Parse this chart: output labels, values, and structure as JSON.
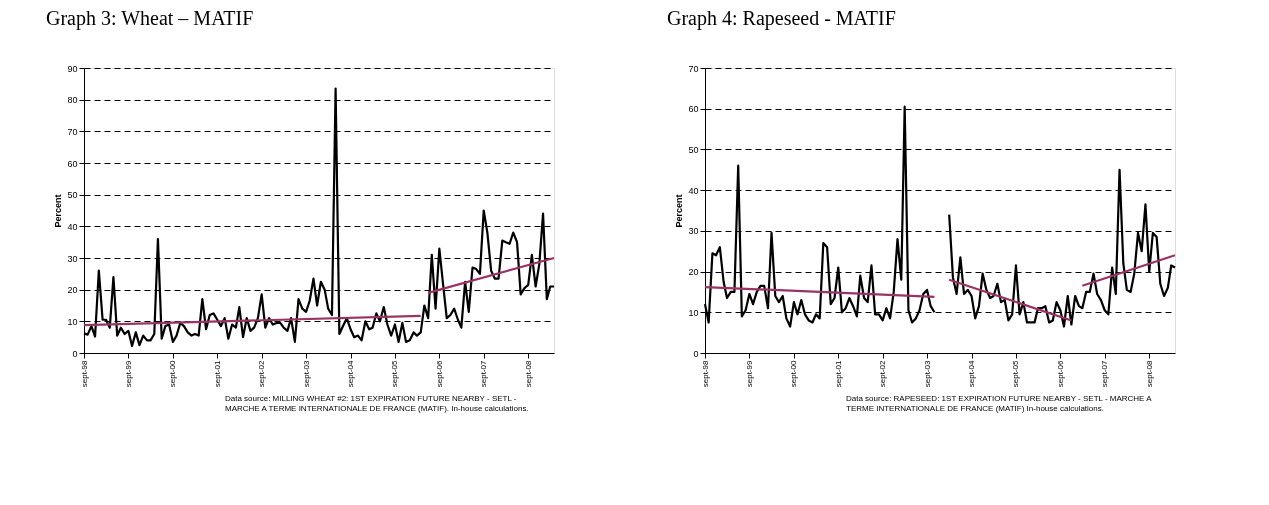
{
  "chart_data": [
    {
      "type": "line",
      "title": "Graph 3: Wheat – MATIF",
      "ylabel": "Percent",
      "annotations": [
        "Data source: MILLING WHEAT #2: 1ST EXPIRATION FUTURE NEARBY - SETL - MARCHE A TERME INTERNATIONALE DE FRANCE (MATIF). In-house calculations."
      ],
      "x": [
        "1998-09",
        "1998-10",
        "1998-11",
        "1998-12",
        "1999-01",
        "1999-02",
        "1999-03",
        "1999-04",
        "1999-05",
        "1999-06",
        "1999-07",
        "1999-08",
        "1999-09",
        "1999-10",
        "1999-11",
        "1999-12",
        "2000-01",
        "2000-02",
        "2000-03",
        "2000-04",
        "2000-05",
        "2000-06",
        "2000-07",
        "2000-08",
        "2000-09",
        "2000-10",
        "2000-11",
        "2000-12",
        "2001-01",
        "2001-02",
        "2001-03",
        "2001-04",
        "2001-05",
        "2001-06",
        "2001-07",
        "2001-08",
        "2001-09",
        "2001-10",
        "2001-11",
        "2001-12",
        "2002-01",
        "2002-02",
        "2002-03",
        "2002-04",
        "2002-05",
        "2002-06",
        "2002-07",
        "2002-08",
        "2002-09",
        "2002-10",
        "2002-11",
        "2002-12",
        "2003-01",
        "2003-02",
        "2003-03",
        "2003-04",
        "2003-05",
        "2003-06",
        "2003-07",
        "2003-08",
        "2003-09",
        "2003-10",
        "2003-11",
        "2003-12",
        "2004-01",
        "2004-02",
        "2004-03",
        "2004-04",
        "2004-05",
        "2004-06",
        "2004-07",
        "2004-08",
        "2004-09",
        "2004-10",
        "2004-11",
        "2004-12",
        "2005-01",
        "2005-02",
        "2005-03",
        "2005-04",
        "2005-05",
        "2005-06",
        "2005-07",
        "2005-08",
        "2005-09",
        "2005-10",
        "2005-11",
        "2005-12",
        "2006-01",
        "2006-02",
        "2006-03",
        "2006-04",
        "2006-05",
        "2006-06",
        "2006-07",
        "2006-08",
        "2006-09",
        "2006-10",
        "2006-11",
        "2006-12",
        "2007-01",
        "2007-02",
        "2007-03",
        "2007-04",
        "2007-05",
        "2007-06",
        "2007-07",
        "2007-08",
        "2007-09",
        "2007-10",
        "2007-11",
        "2007-12",
        "2008-01",
        "2008-02",
        "2008-03",
        "2008-04",
        "2008-05",
        "2008-06",
        "2008-07",
        "2008-08",
        "2008-09",
        "2008-10",
        "2008-11",
        "2008-12",
        "2009-01",
        "2009-02",
        "2009-03",
        "2009-04"
      ],
      "series": [
        {
          "color": "#000000",
          "values": [
            6.2,
            5.8,
            8.5,
            5.2,
            26,
            10.5,
            10.5,
            8,
            24,
            5.5,
            8,
            6,
            7,
            2.2,
            6.5,
            2.5,
            5.5,
            4,
            4,
            6,
            36,
            4.5,
            8.5,
            9,
            3.5,
            5.5,
            9.5,
            8.5,
            6.5,
            5.5,
            6,
            5.5,
            17,
            7.5,
            12,
            12.5,
            10.5,
            8.5,
            11,
            4.5,
            9,
            8,
            14.5,
            5,
            11,
            7,
            8,
            11,
            18.5,
            8,
            11,
            9,
            9.5,
            9.5,
            8,
            7,
            11,
            3.5,
            17,
            14,
            13,
            16.5,
            23.5,
            15,
            22.5,
            20,
            14,
            12,
            83.5,
            6,
            8.5,
            11,
            7.5,
            5,
            5.5,
            4,
            10,
            7.5,
            8,
            12.5,
            10,
            14.5,
            9,
            5.5,
            9,
            3.5,
            9.5,
            3.5,
            4,
            6.5,
            5.5,
            6.5,
            15,
            11,
            31,
            14,
            33,
            22,
            11,
            12,
            14,
            10.5,
            8,
            22.5,
            13,
            27,
            26.5,
            25,
            45,
            38,
            26,
            23.5,
            23.5,
            35.5,
            35,
            34.5,
            38,
            35,
            18.5,
            20.5,
            21.5,
            31,
            21,
            28,
            44,
            17,
            21,
            21
          ]
        },
        {
          "color": "#993366",
          "x": [
            "1998-09",
            "2006-04"
          ],
          "values": [
            8.8,
            11.7
          ]
        },
        {
          "color": "#993366",
          "x": [
            "2006-06",
            "2009-04"
          ],
          "values": [
            19,
            30
          ]
        }
      ],
      "xlim": [
        "1998-09",
        "2009-04"
      ],
      "xticks": [
        {
          "value": "1998-09",
          "label": "sept-98"
        },
        {
          "value": "1999-09",
          "label": "sept-99"
        },
        {
          "value": "2000-09",
          "label": "sept-00"
        },
        {
          "value": "2001-09",
          "label": "sept-01"
        },
        {
          "value": "2002-09",
          "label": "sept-02"
        },
        {
          "value": "2003-09",
          "label": "sept-03"
        },
        {
          "value": "2004-09",
          "label": "sept-04"
        },
        {
          "value": "2005-09",
          "label": "sept-05"
        },
        {
          "value": "2006-09",
          "label": "sept-06"
        },
        {
          "value": "2007-09",
          "label": "sept-07"
        },
        {
          "value": "2008-09",
          "label": "sept-08"
        }
      ],
      "ylim": [
        0,
        90
      ],
      "yticks": [
        0,
        10,
        20,
        30,
        40,
        50,
        60,
        70,
        80,
        90
      ],
      "grid": "y",
      "line_style": "solid"
    },
    {
      "type": "line",
      "title": "Graph 4: Rapeseed - MATIF",
      "ylabel": "Percent",
      "annotations": [
        "Data source: RAPESEED: 1ST EXPIRATION FUTURE NEARBY - SETL - MARCHE A TERME INTERNATIONALE DE FRANCE (MATIF) In-house calculations."
      ],
      "x": [
        "1998-09",
        "1998-10",
        "1998-11",
        "1998-12",
        "1999-01",
        "1999-02",
        "1999-03",
        "1999-04",
        "1999-05",
        "1999-06",
        "1999-07",
        "1999-08",
        "1999-09",
        "1999-10",
        "1999-11",
        "1999-12",
        "2000-01",
        "2000-02",
        "2000-03",
        "2000-04",
        "2000-05",
        "2000-06",
        "2000-07",
        "2000-08",
        "2000-09",
        "2000-10",
        "2000-11",
        "2000-12",
        "2001-01",
        "2001-02",
        "2001-03",
        "2001-04",
        "2001-05",
        "2001-06",
        "2001-07",
        "2001-08",
        "2001-09",
        "2001-10",
        "2001-11",
        "2001-12",
        "2002-01",
        "2002-02",
        "2002-03",
        "2002-04",
        "2002-05",
        "2002-06",
        "2002-07",
        "2002-08",
        "2002-09",
        "2002-10",
        "2002-11",
        "2002-12",
        "2003-01",
        "2003-02",
        "2003-03",
        "2003-04",
        "2003-05",
        "2003-06",
        "2003-07",
        "2003-08",
        "2003-09",
        "2003-10",
        "2003-11",
        "2003-12",
        "2004-01",
        "2004-02",
        "2004-03",
        "2004-04",
        "2004-05",
        "2004-06",
        "2004-07",
        "2004-08",
        "2004-09",
        "2004-10",
        "2004-11",
        "2004-12",
        "2005-01",
        "2005-02",
        "2005-03",
        "2005-04",
        "2005-05",
        "2005-06",
        "2005-07",
        "2005-08",
        "2005-09",
        "2005-10",
        "2005-11",
        "2005-12",
        "2006-01",
        "2006-02",
        "2006-03",
        "2006-04",
        "2006-05",
        "2006-06",
        "2006-07",
        "2006-08",
        "2006-09",
        "2006-10",
        "2006-11",
        "2006-12",
        "2007-01",
        "2007-02",
        "2007-03",
        "2007-04",
        "2007-05",
        "2007-06",
        "2007-07",
        "2007-08",
        "2007-09",
        "2007-10",
        "2007-11",
        "2007-12",
        "2008-01",
        "2008-02",
        "2008-03",
        "2008-04",
        "2008-05",
        "2008-06",
        "2008-07",
        "2008-08",
        "2008-09",
        "2008-10",
        "2008-11",
        "2008-12",
        "2009-01",
        "2009-02",
        "2009-03",
        "2009-04"
      ],
      "series": [
        {
          "color": "#000000",
          "values": [
            12,
            7.5,
            24.5,
            24,
            26,
            17.5,
            13.5,
            15,
            15,
            46,
            9,
            10.5,
            14.5,
            12,
            15,
            16.5,
            16.5,
            11,
            29.5,
            14,
            12.5,
            14,
            8.5,
            6.5,
            12.5,
            9.5,
            13,
            9.5,
            8,
            7.5,
            9.5,
            8.5,
            27,
            26,
            12,
            13.5,
            21,
            10,
            11,
            13.5,
            11.5,
            9,
            19,
            13.5,
            12.5,
            21.5,
            9.5,
            9.5,
            8,
            11,
            8.5,
            15,
            28,
            18,
            60.5,
            10.5,
            7.5,
            8.5,
            10.5,
            14.5,
            15.5,
            11.5,
            10,
            null,
            null,
            null,
            34,
            18.5,
            14.5,
            23.5,
            14.5,
            15.5,
            14,
            8.5,
            11.5,
            19.5,
            15.5,
            13.5,
            14,
            17,
            12.5,
            13,
            8,
            9.5,
            21.5,
            9.5,
            12.5,
            7.5,
            7.5,
            7.5,
            11,
            11,
            11.5,
            7.5,
            8,
            12.5,
            10.5,
            6.5,
            14,
            7,
            14,
            11.5,
            11,
            15,
            15,
            19.5,
            14.5,
            13,
            10.5,
            9.5,
            21,
            14.5,
            45,
            22,
            15.5,
            15,
            19.5,
            29.5,
            25,
            36.5,
            20,
            29.5,
            28.5,
            17,
            14,
            16,
            21.5,
            21
          ]
        },
        {
          "color": "#993366",
          "x": [
            "1998-09",
            "2003-11"
          ],
          "values": [
            16.2,
            13.8
          ]
        },
        {
          "color": "#993366",
          "x": [
            "2004-03",
            "2006-12"
          ],
          "values": [
            18,
            8
          ]
        },
        {
          "color": "#993366",
          "x": [
            "2007-03",
            "2009-04"
          ],
          "values": [
            16.5,
            24
          ]
        }
      ],
      "xlim": [
        "1998-09",
        "2009-04"
      ],
      "xticks": [
        {
          "value": "1998-09",
          "label": "sept-98"
        },
        {
          "value": "1999-09",
          "label": "sept-99"
        },
        {
          "value": "2000-09",
          "label": "sept-00"
        },
        {
          "value": "2001-09",
          "label": "sept-01"
        },
        {
          "value": "2002-09",
          "label": "sept-02"
        },
        {
          "value": "2003-09",
          "label": "sept-03"
        },
        {
          "value": "2004-09",
          "label": "sept-04"
        },
        {
          "value": "2005-09",
          "label": "sept-05"
        },
        {
          "value": "2006-09",
          "label": "sept-06"
        },
        {
          "value": "2007-09",
          "label": "sept-07"
        },
        {
          "value": "2008-09",
          "label": "sept-08"
        }
      ],
      "ylim": [
        0,
        70
      ],
      "yticks": [
        0,
        10,
        20,
        30,
        40,
        50,
        60,
        70
      ],
      "grid": "y",
      "line_style": "solid"
    }
  ]
}
